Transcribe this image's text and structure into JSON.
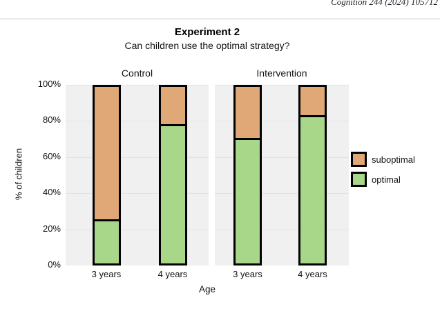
{
  "page_header": {
    "journal_ref": "Cognition 244 (2024) 105712"
  },
  "chart_data": {
    "type": "bar",
    "stacked": true,
    "title": "Experiment 2",
    "subtitle": "Can children use the optimal strategy?",
    "xlabel": "Age",
    "ylabel": "% of children",
    "ylim": [
      0,
      100
    ],
    "yticks": [
      "0%",
      "20%",
      "40%",
      "60%",
      "80%",
      "100%"
    ],
    "grid": true,
    "legend_position": "right",
    "panels": [
      {
        "label": "Control",
        "categories": [
          "3 years",
          "4 years"
        ],
        "series": [
          {
            "name": "optimal",
            "values": [
              25,
              79
            ]
          },
          {
            "name": "suboptimal",
            "values": [
              75,
              21
            ]
          }
        ]
      },
      {
        "label": "Intervention",
        "categories": [
          "3 years",
          "4 years"
        ],
        "series": [
          {
            "name": "optimal",
            "values": [
              71,
              84
            ]
          },
          {
            "name": "suboptimal",
            "values": [
              29,
              16
            ]
          }
        ]
      }
    ],
    "legend": [
      {
        "label": "suboptimal",
        "color": "#e0a777",
        "hatch": "none"
      },
      {
        "label": "optimal",
        "color": "#a9d78a",
        "hatch": "diagonal"
      }
    ],
    "colors": {
      "suboptimal": "#e0a777",
      "optimal": "#a9d78a",
      "bar_border": "#000000",
      "panel_background": "#f0f0f0",
      "gridline": "#e2e2e2"
    }
  }
}
